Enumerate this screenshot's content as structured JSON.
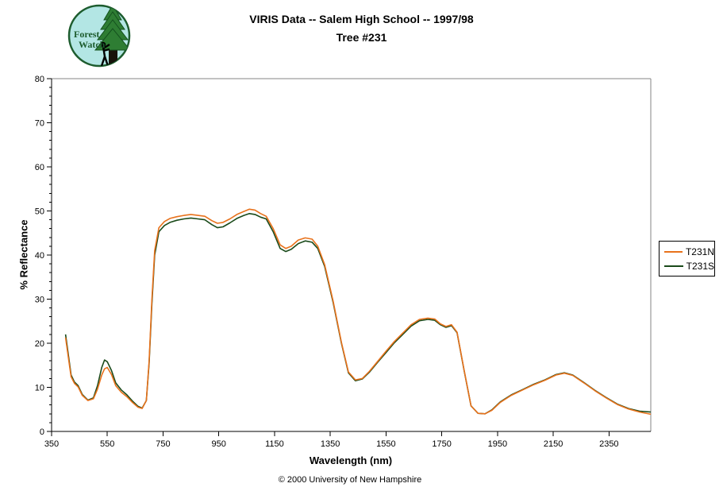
{
  "header": {
    "title_line1": "VIRIS Data -- Salem High School -- 1997/98",
    "title_line2": "Tree #231",
    "logo": {
      "line1": "Forest",
      "line2": "Watch"
    }
  },
  "footer": {
    "copyright": "© 2000 University of New Hampshire"
  },
  "colors": {
    "series_north": "#E8721C",
    "series_south": "#1A4A1A",
    "plot_border": "#848484",
    "axis": "#000000",
    "logo_sky": "#B3E6E4",
    "logo_green": "#1D5C2E"
  },
  "chart_data": {
    "type": "line",
    "title": "VIRIS Data -- Salem High School -- 1997/98 / Tree #231",
    "xlabel": "Wavelength (nm)",
    "ylabel": "% Reflectance",
    "xlim": [
      350,
      2500
    ],
    "ylim": [
      0,
      80
    ],
    "x_ticks": [
      350,
      550,
      750,
      950,
      1150,
      1350,
      1550,
      1750,
      1950,
      2150,
      2350
    ],
    "y_ticks": [
      0,
      10,
      20,
      30,
      40,
      50,
      60,
      70,
      80
    ],
    "y_minor_step": 2,
    "grid": false,
    "legend_position": "right-outside",
    "x": [
      400,
      410,
      420,
      432,
      445,
      460,
      480,
      500,
      515,
      530,
      540,
      550,
      565,
      580,
      600,
      620,
      640,
      660,
      675,
      690,
      700,
      710,
      720,
      735,
      755,
      775,
      800,
      825,
      850,
      875,
      900,
      925,
      945,
      965,
      990,
      1015,
      1040,
      1060,
      1080,
      1100,
      1120,
      1145,
      1170,
      1190,
      1210,
      1235,
      1260,
      1285,
      1305,
      1330,
      1360,
      1390,
      1415,
      1440,
      1465,
      1490,
      1520,
      1550,
      1580,
      1610,
      1640,
      1670,
      1700,
      1725,
      1745,
      1765,
      1785,
      1805,
      1830,
      1855,
      1880,
      1905,
      1930,
      1960,
      2000,
      2040,
      2080,
      2120,
      2160,
      2190,
      2220,
      2260,
      2300,
      2340,
      2380,
      2420,
      2460,
      2500
    ],
    "series": [
      {
        "name": "T231N",
        "color": "#E8721C",
        "values": [
          21.3,
          16.8,
          12.4,
          10.9,
          10.1,
          8.2,
          7.0,
          7.4,
          9.6,
          12.8,
          14.2,
          14.5,
          12.9,
          10.4,
          8.9,
          7.9,
          6.6,
          5.5,
          5.2,
          7.0,
          16.0,
          30.0,
          41.0,
          46.2,
          47.6,
          48.3,
          48.7,
          49.0,
          49.2,
          49.0,
          48.8,
          47.8,
          47.2,
          47.4,
          48.2,
          49.2,
          49.9,
          50.4,
          50.2,
          49.4,
          48.8,
          46.0,
          42.3,
          41.5,
          42.0,
          43.4,
          43.9,
          43.6,
          42.0,
          37.8,
          29.6,
          20.2,
          13.5,
          11.7,
          12.0,
          13.6,
          15.9,
          18.2,
          20.4,
          22.3,
          24.2,
          25.4,
          25.7,
          25.5,
          24.4,
          23.8,
          24.2,
          22.5,
          14.0,
          5.8,
          4.1,
          4.0,
          4.8,
          6.6,
          8.2,
          9.4,
          10.6,
          11.6,
          12.8,
          13.2,
          12.7,
          11.0,
          9.2,
          7.6,
          6.1,
          5.1,
          4.4,
          3.9
        ]
      },
      {
        "name": "T231S",
        "color": "#1A4A1A",
        "values": [
          22.0,
          17.4,
          12.8,
          11.2,
          10.4,
          8.4,
          7.1,
          7.6,
          10.4,
          14.5,
          16.2,
          15.8,
          13.8,
          11.0,
          9.4,
          8.3,
          6.9,
          5.7,
          5.3,
          7.0,
          15.5,
          29.0,
          40.0,
          45.3,
          46.7,
          47.4,
          47.9,
          48.2,
          48.4,
          48.2,
          48.0,
          46.9,
          46.2,
          46.4,
          47.3,
          48.3,
          49.0,
          49.4,
          49.2,
          48.6,
          48.2,
          45.3,
          41.5,
          40.8,
          41.3,
          42.6,
          43.2,
          42.9,
          41.5,
          37.4,
          29.3,
          20.0,
          13.3,
          11.5,
          11.9,
          13.4,
          15.7,
          17.9,
          20.1,
          22.0,
          23.9,
          25.1,
          25.4,
          25.2,
          24.2,
          23.6,
          24.0,
          22.4,
          13.9,
          5.8,
          4.1,
          4.0,
          4.9,
          6.7,
          8.3,
          9.5,
          10.7,
          11.7,
          12.9,
          13.3,
          12.8,
          11.1,
          9.3,
          7.7,
          6.2,
          5.2,
          4.6,
          4.4
        ]
      }
    ]
  },
  "legend": {
    "entries": [
      {
        "label": "T231N",
        "color": "#E8721C"
      },
      {
        "label": "T231S",
        "color": "#1A4A1A"
      }
    ]
  }
}
